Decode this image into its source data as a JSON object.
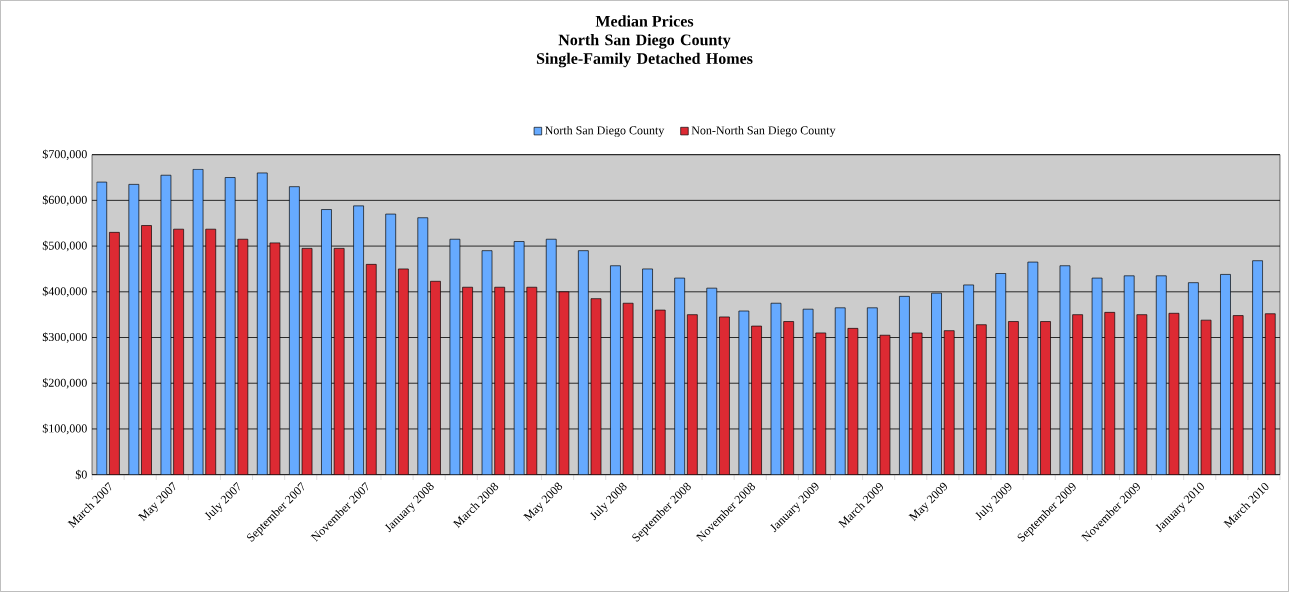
{
  "chart_data": {
    "type": "bar",
    "title": "Median Prices",
    "subtitle": "North San Diego County Single-Family Detached Homes",
    "categories": [
      "March 2007",
      null,
      "May 2007",
      null,
      "July 2007",
      null,
      "September 2007",
      null,
      "November 2007",
      null,
      "January 2008",
      null,
      "March 2008",
      null,
      "May 2008",
      null,
      "July 2008",
      null,
      "September 2008",
      null,
      "November 2008",
      null,
      "January 2009",
      null,
      "March 2009",
      null,
      "May 2009",
      null,
      "July 2009",
      null,
      "September 2009",
      null,
      "November 2009",
      null,
      "January 2010",
      null,
      "March 2010"
    ],
    "series": [
      {
        "name": "North San Diego County",
        "color": "#66aaff",
        "values": [
          640000,
          635000,
          655000,
          668000,
          650000,
          660000,
          630000,
          580000,
          588000,
          570000,
          562000,
          515000,
          490000,
          510000,
          515000,
          490000,
          457000,
          450000,
          430000,
          408000,
          358000,
          375000,
          362000,
          365000,
          365000,
          390000,
          397000,
          415000,
          440000,
          465000,
          457000,
          430000,
          435000,
          435000,
          420000,
          438000,
          468000
        ]
      },
      {
        "name": "Non-North San Diego County",
        "color": "#dd2a33",
        "values": [
          530000,
          545000,
          537000,
          537000,
          515000,
          507000,
          495000,
          495000,
          460000,
          450000,
          423000,
          410000,
          410000,
          410000,
          400000,
          385000,
          375000,
          360000,
          350000,
          345000,
          325000,
          335000,
          310000,
          320000,
          305000,
          310000,
          315000,
          328000,
          335000,
          335000,
          350000,
          355000,
          350000,
          353000,
          338000,
          348000,
          352000
        ]
      }
    ],
    "ylim": [
      0,
      700000
    ],
    "yticks": [
      {
        "value": 0,
        "label": "$0"
      },
      {
        "value": 100000,
        "label": "$100,000"
      },
      {
        "value": 200000,
        "label": "$200,000"
      },
      {
        "value": 300000,
        "label": "$300,000"
      },
      {
        "value": 400000,
        "label": "$400,000"
      },
      {
        "value": 500000,
        "label": "$500,000"
      },
      {
        "value": 600000,
        "label": "$600,000"
      },
      {
        "value": 700000,
        "label": "$700,000"
      }
    ],
    "grid": "y",
    "legend": "top"
  }
}
